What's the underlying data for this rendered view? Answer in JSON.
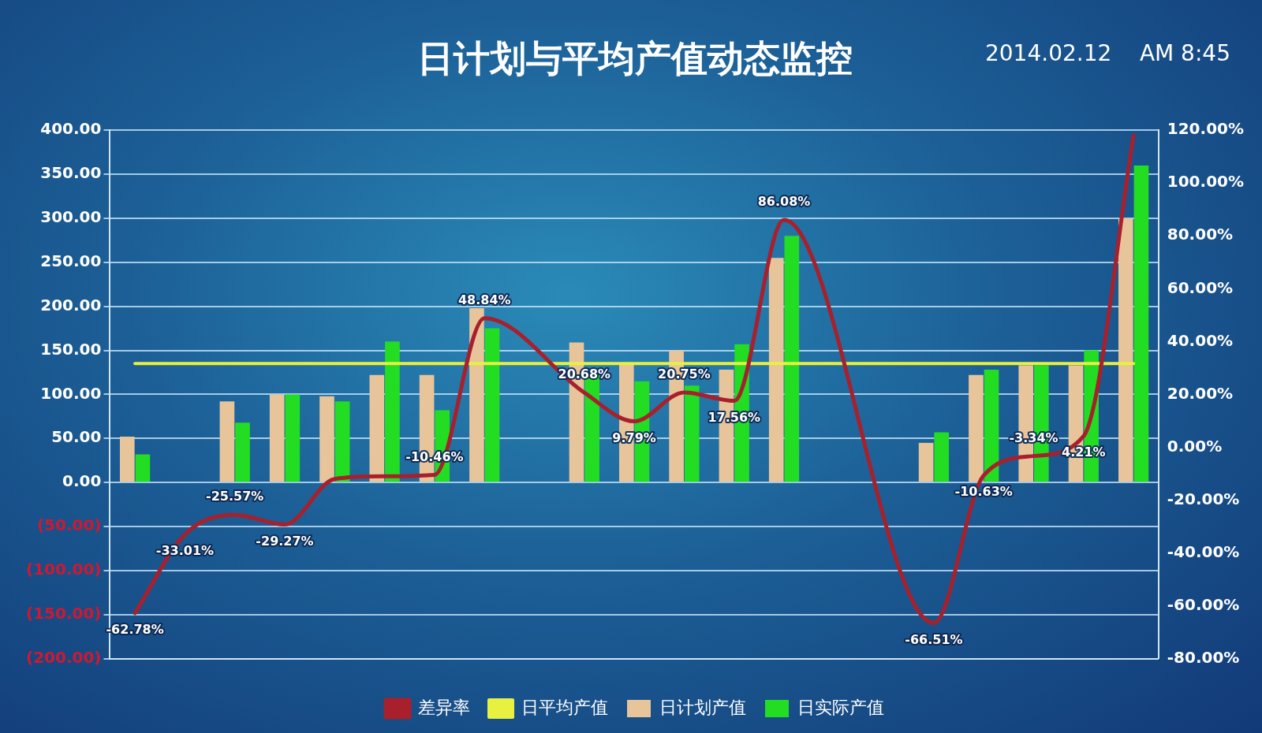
{
  "chart_data": {
    "type": "bar",
    "title": "日计划与平均产值动态监控",
    "annotations": [
      "2014.02.12    AM 8:45"
    ],
    "categories": [
      null,
      null,
      null,
      null,
      null,
      null,
      null,
      null,
      null,
      null,
      null,
      null,
      null,
      null,
      null,
      null,
      null,
      null,
      null,
      null,
      null
    ],
    "series": [
      {
        "name": "日计划产值",
        "color": "#e8c49a",
        "values": [
          52,
          null,
          92,
          100,
          98,
          122,
          122,
          198,
          null,
          159,
          135,
          150,
          128,
          255,
          null,
          null,
          45,
          122,
          133,
          133,
          300
        ]
      },
      {
        "name": "日实际产值",
        "color": "#22dd22",
        "values": [
          32,
          null,
          68,
          100,
          92,
          160,
          82,
          175,
          null,
          122,
          115,
          110,
          157,
          280,
          null,
          null,
          57,
          128,
          133,
          150,
          360
        ]
      },
      {
        "name": "日平均产值",
        "type": "line",
        "color": "#e8f040",
        "values": [
          135,
          135,
          135,
          135,
          135,
          135,
          135,
          135,
          135,
          135,
          135,
          135,
          135,
          135,
          135,
          135,
          135,
          135,
          135,
          135,
          135
        ]
      },
      {
        "name": "差异率",
        "type": "line",
        "axis": "y2",
        "color": "#a8202c",
        "values": [
          -62.78,
          -33.01,
          -25.57,
          -29.27,
          -12,
          -11,
          -10.46,
          48.84,
          null,
          20.68,
          9.79,
          20.75,
          17.56,
          86.08,
          null,
          null,
          -66.51,
          -10.63,
          -3.34,
          4.21,
          118
        ],
        "value_labels": [
          "-62.78%",
          "-33.01%",
          "-25.57%",
          "-29.27%",
          null,
          null,
          "-10.46%",
          "48.84%",
          null,
          "20.68%",
          "9.79%",
          "20.75%",
          "17.56%",
          "86.08%",
          null,
          null,
          "-66.51%",
          "-10.63%",
          "-3.34%",
          "4.21%",
          null
        ]
      }
    ],
    "ylim": [
      -200,
      400
    ],
    "yticks": [
      {
        "value": 400,
        "label": "400.00"
      },
      {
        "value": 350,
        "label": "350.00"
      },
      {
        "value": 300,
        "label": "300.00"
      },
      {
        "value": 250,
        "label": "250.00"
      },
      {
        "value": 200,
        "label": "200.00"
      },
      {
        "value": 150,
        "label": "150.00"
      },
      {
        "value": 100,
        "label": "100.00"
      },
      {
        "value": 50,
        "label": "50.00"
      },
      {
        "value": 0,
        "label": "0.00"
      },
      {
        "value": -50,
        "label": "(50.00)"
      },
      {
        "value": -100,
        "label": "(100.00)"
      },
      {
        "value": -150,
        "label": "(150.00)"
      },
      {
        "value": -200,
        "label": "(200.00)"
      }
    ],
    "y2lim": [
      -80,
      120
    ],
    "y2ticks": [
      {
        "value": 120,
        "label": "120.00%"
      },
      {
        "value": 100,
        "label": "100.00%"
      },
      {
        "value": 80,
        "label": "80.00%"
      },
      {
        "value": 60,
        "label": "60.00%"
      },
      {
        "value": 40,
        "label": "40.00%"
      },
      {
        "value": 20,
        "label": "20.00%"
      },
      {
        "value": 0,
        "label": "0.00%"
      },
      {
        "value": -20,
        "label": "-20.00%"
      },
      {
        "value": -40,
        "label": "-40.00%"
      },
      {
        "value": -60,
        "label": "-60.00%"
      },
      {
        "value": -80,
        "label": "-80.00%"
      }
    ],
    "grid": "y",
    "legend": "bottom",
    "marker": "none",
    "line_style": "solid"
  }
}
